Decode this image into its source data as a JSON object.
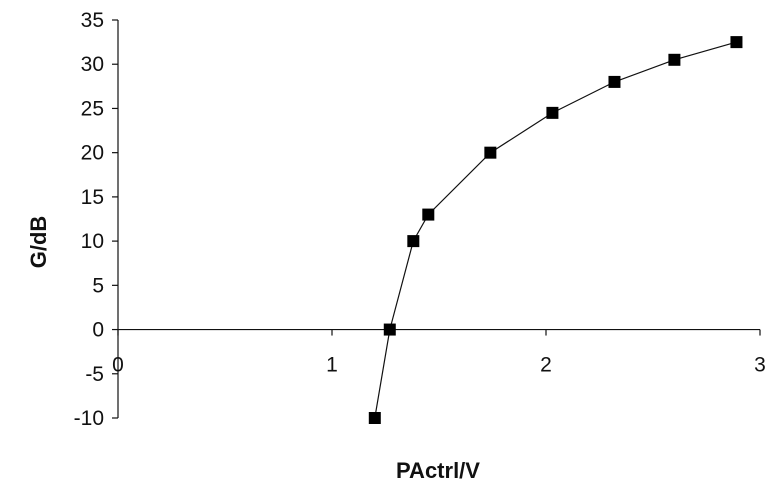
{
  "chart_data": {
    "type": "line",
    "xlabel": "PActrl/V",
    "ylabel": "G/dB",
    "xlim": [
      0,
      3
    ],
    "ylim": [
      -10,
      35
    ],
    "x_ticks": [
      0,
      1,
      2,
      3
    ],
    "y_ticks": [
      35,
      30,
      25,
      20,
      15,
      10,
      5,
      0,
      -5,
      -10
    ],
    "grid": false,
    "marker": "square",
    "series": [
      {
        "x": [
          1.2,
          1.27,
          1.38,
          1.45,
          1.74,
          2.03,
          2.32,
          2.6,
          2.89
        ],
        "y": [
          -10,
          0,
          10,
          13,
          20,
          24.5,
          28,
          30.5,
          32.5
        ]
      }
    ]
  }
}
